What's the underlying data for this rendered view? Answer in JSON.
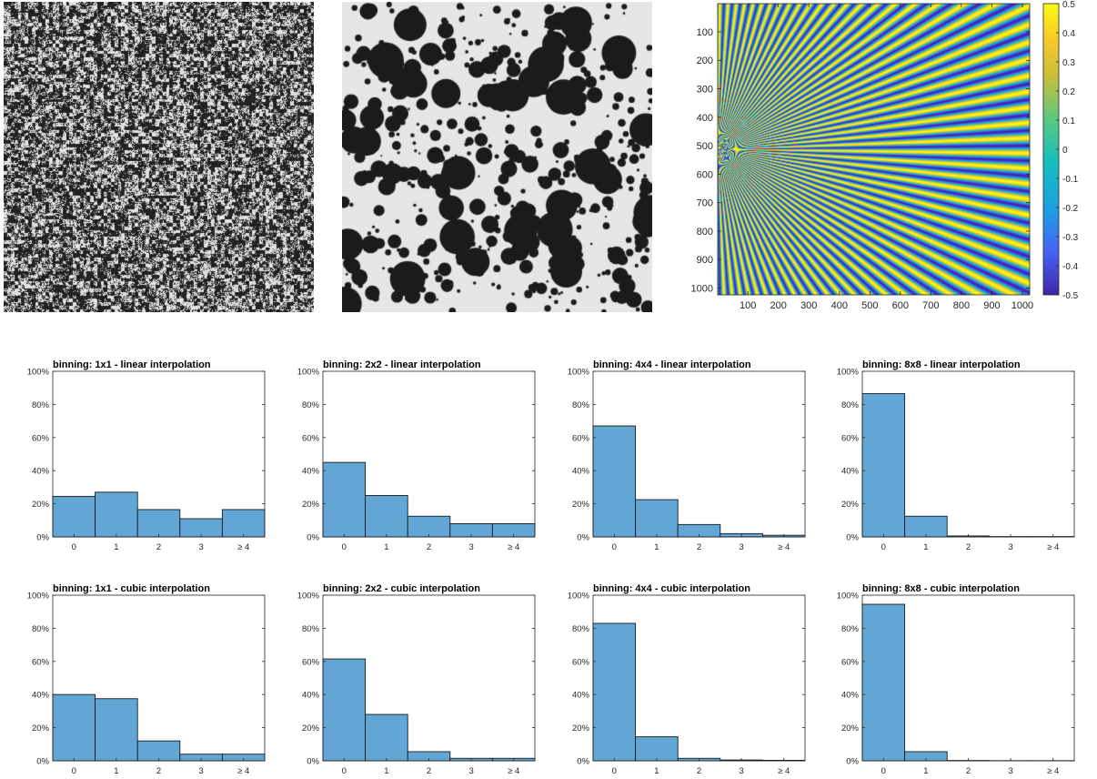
{
  "colorbar": {
    "ticks": [
      "0.5",
      "0.4",
      "0.3",
      "0.2",
      "0.1",
      "0",
      "-0.1",
      "-0.2",
      "-0.3",
      "-0.4",
      "-0.5"
    ]
  },
  "colors": {
    "bar_fill": "#62a6d6",
    "bar_edge": "#1a1a1a",
    "speckle_dark": "#1b1b1b",
    "speckle_light": "#d9d9d9",
    "background_gray": "#e6e6e6"
  },
  "chart_data": [
    {
      "type": "heatmap",
      "title": "",
      "xlabel": "",
      "ylabel": "",
      "x_ticks": [
        "100",
        "200",
        "300",
        "400",
        "500",
        "600",
        "700",
        "800",
        "900",
        "1000"
      ],
      "y_ticks": [
        "100",
        "200",
        "300",
        "400",
        "500",
        "600",
        "700",
        "800",
        "900",
        "1000"
      ],
      "xlim": [
        1,
        1024
      ],
      "ylim": [
        1,
        1024
      ],
      "colormap": "parula",
      "clim": [
        -0.5,
        0.5
      ]
    },
    {
      "type": "bar",
      "title": "binning: 1x1 - linear interpolation",
      "categories": [
        "0",
        "1",
        "2",
        "3",
        "≥ 4"
      ],
      "values": [
        24.5,
        27,
        16.5,
        11,
        16.5
      ],
      "y_ticks": [
        "0%",
        "20%",
        "40%",
        "60%",
        "80%",
        "100%"
      ],
      "ylim": [
        0,
        100
      ]
    },
    {
      "type": "bar",
      "title": "binning: 2x2 - linear interpolation",
      "categories": [
        "0",
        "1",
        "2",
        "3",
        "≥ 4"
      ],
      "values": [
        45,
        25,
        12.5,
        8,
        8
      ],
      "y_ticks": [
        "0%",
        "20%",
        "40%",
        "60%",
        "80%",
        "100%"
      ],
      "ylim": [
        0,
        100
      ]
    },
    {
      "type": "bar",
      "title": "binning: 4x4 - linear interpolation",
      "categories": [
        "0",
        "1",
        "2",
        "3",
        "≥ 4"
      ],
      "values": [
        67,
        22.5,
        7.5,
        2,
        1
      ],
      "y_ticks": [
        "0%",
        "20%",
        "40%",
        "60%",
        "80%",
        "100%"
      ],
      "ylim": [
        0,
        100
      ]
    },
    {
      "type": "bar",
      "title": "binning: 8x8 - linear interpolation",
      "categories": [
        "0",
        "1",
        "2",
        "3",
        "≥ 4"
      ],
      "values": [
        86.5,
        12.5,
        0.6,
        0.2,
        0.2
      ],
      "y_ticks": [
        "0%",
        "20%",
        "40%",
        "60%",
        "80%",
        "100%"
      ],
      "ylim": [
        0,
        100
      ]
    },
    {
      "type": "bar",
      "title": "binning: 1x1 - cubic interpolation",
      "categories": [
        "0",
        "1",
        "2",
        "3",
        "≥ 4"
      ],
      "values": [
        40,
        37.5,
        12,
        4,
        4
      ],
      "y_ticks": [
        "0%",
        "20%",
        "40%",
        "60%",
        "80%",
        "100%"
      ],
      "ylim": [
        0,
        100
      ]
    },
    {
      "type": "bar",
      "title": "binning: 2x2 - cubic interpolation",
      "categories": [
        "0",
        "1",
        "2",
        "3",
        "≥ 4"
      ],
      "values": [
        61.5,
        28,
        5.5,
        1.5,
        1.5
      ],
      "y_ticks": [
        "0%",
        "20%",
        "40%",
        "60%",
        "80%",
        "100%"
      ],
      "ylim": [
        0,
        100
      ]
    },
    {
      "type": "bar",
      "title": "binning: 4x4 - cubic interpolation",
      "categories": [
        "0",
        "1",
        "2",
        "3",
        "≥ 4"
      ],
      "values": [
        83,
        14.5,
        1.5,
        0.5,
        0.3
      ],
      "y_ticks": [
        "0%",
        "20%",
        "40%",
        "60%",
        "80%",
        "100%"
      ],
      "ylim": [
        0,
        100
      ]
    },
    {
      "type": "bar",
      "title": "binning: 8x8 - cubic interpolation",
      "categories": [
        "0",
        "1",
        "2",
        "3",
        "≥ 4"
      ],
      "values": [
        94.5,
        5.5,
        0.2,
        0.1,
        0.1
      ],
      "y_ticks": [
        "0%",
        "20%",
        "40%",
        "60%",
        "80%",
        "100%"
      ],
      "ylim": [
        0,
        100
      ]
    }
  ]
}
